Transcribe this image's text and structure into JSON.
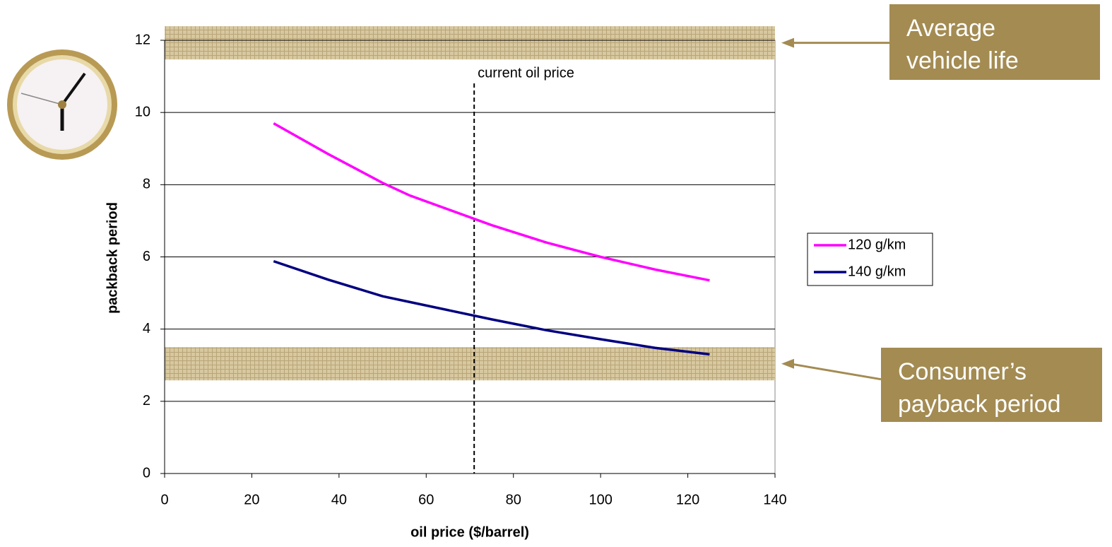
{
  "chart_data": {
    "type": "line",
    "x_label": "oil price ($/barrel)",
    "y_label": "packback period",
    "x": [
      25,
      37.5,
      50,
      56.25,
      75,
      87.5,
      100,
      112.5,
      125
    ],
    "series": [
      {
        "name": "120 g/km",
        "color": "#ff00ff",
        "values": [
          9.7,
          8.85,
          8.05,
          7.7,
          6.88,
          6.4,
          6.0,
          5.65,
          5.35
        ]
      },
      {
        "name": "140 g/km",
        "color": "#000080",
        "values": [
          5.88,
          5.37,
          4.91,
          4.75,
          4.27,
          3.97,
          3.72,
          3.48,
          3.3
        ]
      }
    ],
    "xlim": [
      0,
      140
    ],
    "xticks": [
      0,
      20,
      40,
      60,
      80,
      100,
      120,
      140
    ],
    "ylim": [
      0,
      12
    ],
    "yticks": [
      0,
      2,
      4,
      6,
      8,
      10,
      12
    ],
    "grid": true,
    "legend": "right",
    "current_price": {
      "x": 71,
      "label": "current oil price"
    },
    "bands": [
      {
        "y0": 11.47,
        "y1": 12.39,
        "lines": [
          "Average",
          "vehicle life"
        ]
      },
      {
        "y0": 2.58,
        "y1": 3.5,
        "lines": [
          "Consumer’s",
          "payback period"
        ]
      }
    ]
  }
}
